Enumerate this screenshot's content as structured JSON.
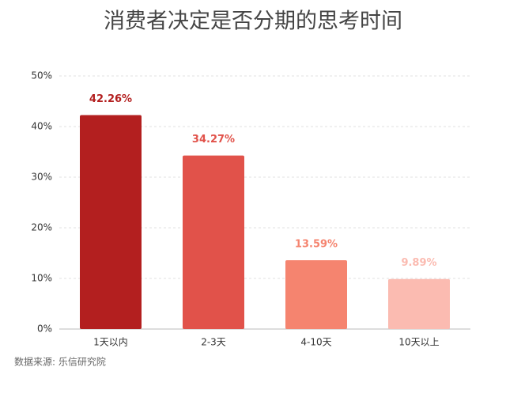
{
  "chart_data": {
    "type": "bar",
    "title": "消费者决定是否分期的思考时间",
    "categories": [
      "1天以内",
      "2-3天",
      "4-10天",
      "10天以上"
    ],
    "values": [
      42.26,
      34.27,
      13.59,
      9.89
    ],
    "value_labels": [
      "42.26%",
      "34.27%",
      "13.59%",
      "9.89%"
    ],
    "colors": [
      "#b31f1f",
      "#e1524a",
      "#f5846f",
      "#fbbbb1"
    ],
    "ylim": [
      0,
      50
    ],
    "yticks": [
      {
        "value": 0,
        "label": "0%"
      },
      {
        "value": 10,
        "label": "10%"
      },
      {
        "value": 20,
        "label": "20%"
      },
      {
        "value": 30,
        "label": "30%"
      },
      {
        "value": 40,
        "label": "40%"
      },
      {
        "value": 50,
        "label": "50%"
      }
    ],
    "grid": true,
    "source": "数据来源: 乐信研究院"
  }
}
